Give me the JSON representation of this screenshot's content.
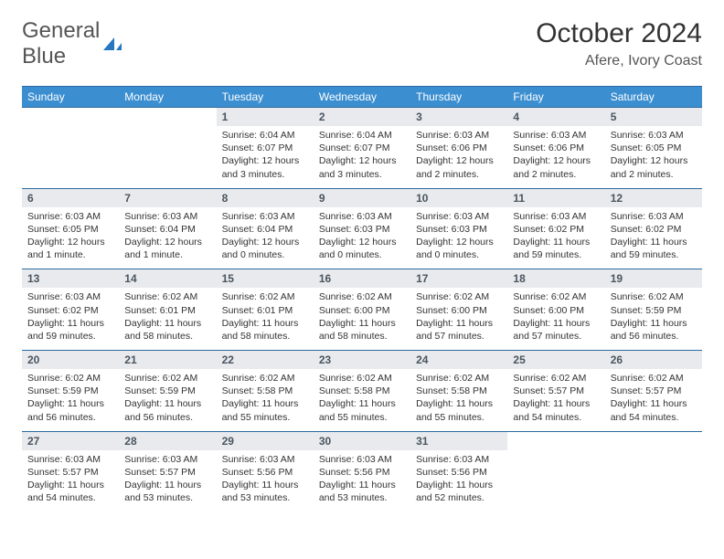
{
  "logo": {
    "text1": "General",
    "text2": "Blue",
    "icon_color": "#2876c0"
  },
  "title": "October 2024",
  "location": "Afere, Ivory Coast",
  "header_bg": "#3b8ed0",
  "header_fg": "#ffffff",
  "daynum_bg": "#e8eaed",
  "daynum_fg": "#4a5560",
  "border_color": "#2c6aa0",
  "cell_font_size": 10.5,
  "days": [
    "Sunday",
    "Monday",
    "Tuesday",
    "Wednesday",
    "Thursday",
    "Friday",
    "Saturday"
  ],
  "weeks": [
    [
      null,
      null,
      {
        "n": "1",
        "sr": "6:04 AM",
        "ss": "6:07 PM",
        "dl": "12 hours and 3 minutes."
      },
      {
        "n": "2",
        "sr": "6:04 AM",
        "ss": "6:07 PM",
        "dl": "12 hours and 3 minutes."
      },
      {
        "n": "3",
        "sr": "6:03 AM",
        "ss": "6:06 PM",
        "dl": "12 hours and 2 minutes."
      },
      {
        "n": "4",
        "sr": "6:03 AM",
        "ss": "6:06 PM",
        "dl": "12 hours and 2 minutes."
      },
      {
        "n": "5",
        "sr": "6:03 AM",
        "ss": "6:05 PM",
        "dl": "12 hours and 2 minutes."
      }
    ],
    [
      {
        "n": "6",
        "sr": "6:03 AM",
        "ss": "6:05 PM",
        "dl": "12 hours and 1 minute."
      },
      {
        "n": "7",
        "sr": "6:03 AM",
        "ss": "6:04 PM",
        "dl": "12 hours and 1 minute."
      },
      {
        "n": "8",
        "sr": "6:03 AM",
        "ss": "6:04 PM",
        "dl": "12 hours and 0 minutes."
      },
      {
        "n": "9",
        "sr": "6:03 AM",
        "ss": "6:03 PM",
        "dl": "12 hours and 0 minutes."
      },
      {
        "n": "10",
        "sr": "6:03 AM",
        "ss": "6:03 PM",
        "dl": "12 hours and 0 minutes."
      },
      {
        "n": "11",
        "sr": "6:03 AM",
        "ss": "6:02 PM",
        "dl": "11 hours and 59 minutes."
      },
      {
        "n": "12",
        "sr": "6:03 AM",
        "ss": "6:02 PM",
        "dl": "11 hours and 59 minutes."
      }
    ],
    [
      {
        "n": "13",
        "sr": "6:03 AM",
        "ss": "6:02 PM",
        "dl": "11 hours and 59 minutes."
      },
      {
        "n": "14",
        "sr": "6:02 AM",
        "ss": "6:01 PM",
        "dl": "11 hours and 58 minutes."
      },
      {
        "n": "15",
        "sr": "6:02 AM",
        "ss": "6:01 PM",
        "dl": "11 hours and 58 minutes."
      },
      {
        "n": "16",
        "sr": "6:02 AM",
        "ss": "6:00 PM",
        "dl": "11 hours and 58 minutes."
      },
      {
        "n": "17",
        "sr": "6:02 AM",
        "ss": "6:00 PM",
        "dl": "11 hours and 57 minutes."
      },
      {
        "n": "18",
        "sr": "6:02 AM",
        "ss": "6:00 PM",
        "dl": "11 hours and 57 minutes."
      },
      {
        "n": "19",
        "sr": "6:02 AM",
        "ss": "5:59 PM",
        "dl": "11 hours and 56 minutes."
      }
    ],
    [
      {
        "n": "20",
        "sr": "6:02 AM",
        "ss": "5:59 PM",
        "dl": "11 hours and 56 minutes."
      },
      {
        "n": "21",
        "sr": "6:02 AM",
        "ss": "5:59 PM",
        "dl": "11 hours and 56 minutes."
      },
      {
        "n": "22",
        "sr": "6:02 AM",
        "ss": "5:58 PM",
        "dl": "11 hours and 55 minutes."
      },
      {
        "n": "23",
        "sr": "6:02 AM",
        "ss": "5:58 PM",
        "dl": "11 hours and 55 minutes."
      },
      {
        "n": "24",
        "sr": "6:02 AM",
        "ss": "5:58 PM",
        "dl": "11 hours and 55 minutes."
      },
      {
        "n": "25",
        "sr": "6:02 AM",
        "ss": "5:57 PM",
        "dl": "11 hours and 54 minutes."
      },
      {
        "n": "26",
        "sr": "6:02 AM",
        "ss": "5:57 PM",
        "dl": "11 hours and 54 minutes."
      }
    ],
    [
      {
        "n": "27",
        "sr": "6:03 AM",
        "ss": "5:57 PM",
        "dl": "11 hours and 54 minutes."
      },
      {
        "n": "28",
        "sr": "6:03 AM",
        "ss": "5:57 PM",
        "dl": "11 hours and 53 minutes."
      },
      {
        "n": "29",
        "sr": "6:03 AM",
        "ss": "5:56 PM",
        "dl": "11 hours and 53 minutes."
      },
      {
        "n": "30",
        "sr": "6:03 AM",
        "ss": "5:56 PM",
        "dl": "11 hours and 53 minutes."
      },
      {
        "n": "31",
        "sr": "6:03 AM",
        "ss": "5:56 PM",
        "dl": "11 hours and 52 minutes."
      },
      null,
      null
    ]
  ]
}
